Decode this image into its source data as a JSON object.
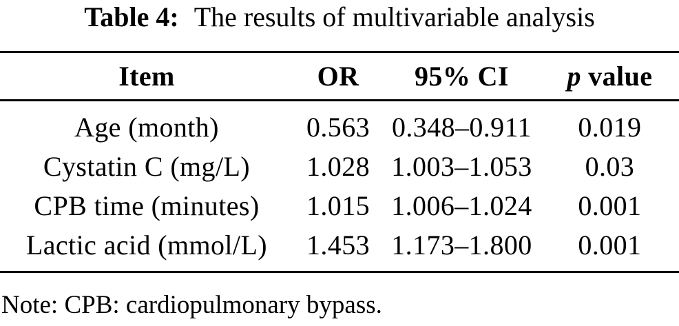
{
  "caption": {
    "label": "Table 4:",
    "text": "The results of multivariable analysis"
  },
  "header": {
    "item": "Item",
    "or": "OR",
    "ci": "95% CI",
    "p_italic": "p",
    "p_rest": "value"
  },
  "rows": [
    {
      "item": "Age (month)",
      "or": "0.563",
      "ci": "0.348–0.911",
      "p": "0.019"
    },
    {
      "item": "Cystatin C (mg/L)",
      "or": "1.028",
      "ci": "1.003–1.053",
      "p": "0.03"
    },
    {
      "item": "CPB time (minutes)",
      "or": "1.015",
      "ci": "1.006–1.024",
      "p": "0.001"
    },
    {
      "item": "Lactic acid (mmol/L)",
      "or": "1.453",
      "ci": "1.173–1.800",
      "p": "0.001"
    }
  ],
  "note": "Note: CPB: cardiopulmonary bypass.",
  "colors": {
    "text": "#000000",
    "background": "#ffffff",
    "rule": "#000000"
  }
}
